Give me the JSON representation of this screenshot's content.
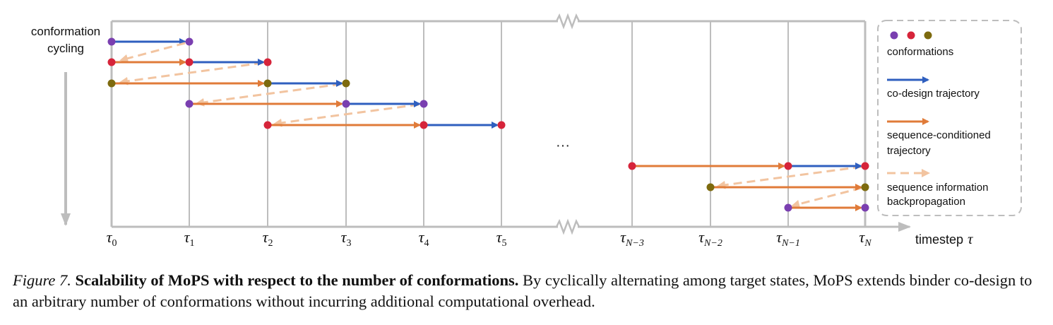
{
  "diagram": {
    "axis_label_left_line1": "conformation",
    "axis_label_left_line2": "cycling",
    "axis_label_bottom": "timestep",
    "axis_label_bottom_symbol": "τ",
    "ellipsis": "···",
    "ticks": [
      {
        "base": "τ",
        "sub": "0"
      },
      {
        "base": "τ",
        "sub": "1"
      },
      {
        "base": "τ",
        "sub": "2"
      },
      {
        "base": "τ",
        "sub": "3"
      },
      {
        "base": "τ",
        "sub": "4"
      },
      {
        "base": "τ",
        "sub": "5"
      },
      {
        "base": "τ",
        "sub": "N−3"
      },
      {
        "base": "τ",
        "sub": "N−2"
      },
      {
        "base": "τ",
        "sub": "N−1"
      },
      {
        "base": "τ",
        "sub": "N"
      }
    ],
    "legend": {
      "conformations": "conformations",
      "codesign": "co-design trajectory",
      "seqcond_line1": "sequence-conditioned",
      "seqcond_line2": "trajectory",
      "backprop_line1": "sequence information",
      "backprop_line2": "backpropagation"
    },
    "colors": {
      "grid": "#bdbdbd",
      "codesign": "#2f5fbf",
      "seqcond": "#e07b39",
      "backprop": "#f2c4a0",
      "purple": "#7a3fb0",
      "red": "#d6243a",
      "olive": "#7d6a0e"
    }
  },
  "caption": {
    "label": "Figure 7.",
    "title": "Scalability of MoPS with respect to the number of conformations.",
    "body": "By cyclically alternating among target states, MoPS extends binder co-design to an arbitrary number of conformations without incurring additional computational overhead."
  }
}
